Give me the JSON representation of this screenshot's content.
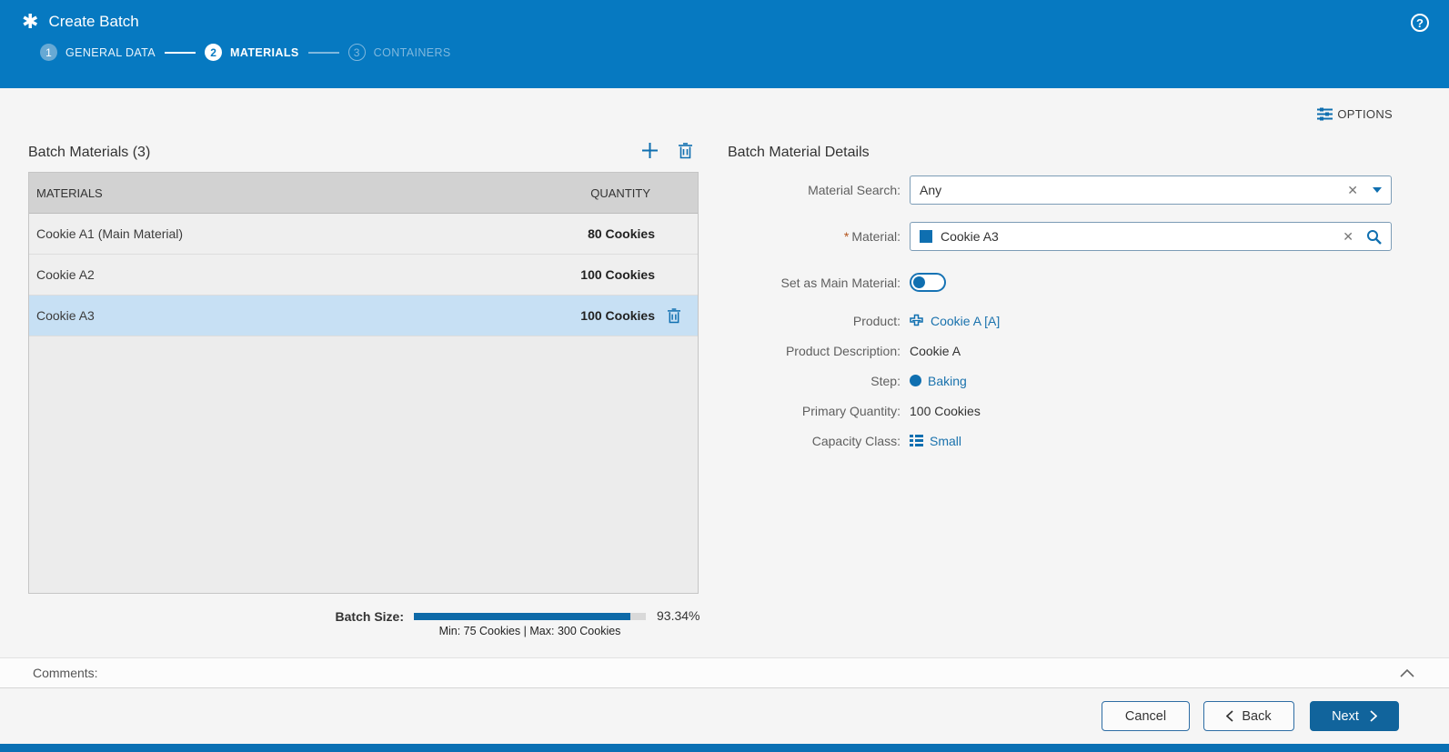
{
  "header": {
    "title": "Create Batch",
    "help_label": "?",
    "steps": [
      {
        "number": "1",
        "label": "GENERAL DATA",
        "state": "completed"
      },
      {
        "number": "2",
        "label": "MATERIALS",
        "state": "active"
      },
      {
        "number": "3",
        "label": "CONTAINERS",
        "state": "future"
      }
    ]
  },
  "toolbar": {
    "options_label": "OPTIONS"
  },
  "materials_panel": {
    "title": "Batch Materials (3)",
    "table": {
      "columns": [
        "MATERIALS",
        "QUANTITY"
      ],
      "rows": [
        {
          "material": "Cookie A1 (Main Material)",
          "quantity": "80 Cookies",
          "selected": false
        },
        {
          "material": "Cookie A2",
          "quantity": "100 Cookies",
          "selected": false
        },
        {
          "material": "Cookie A3",
          "quantity": "100 Cookies",
          "selected": true
        }
      ]
    },
    "batch_size": {
      "label": "Batch Size:",
      "percent_text": "93.34%",
      "percent_value": 93.34,
      "range_text": "Min: 75 Cookies | Max: 300 Cookies"
    }
  },
  "details_panel": {
    "title": "Batch Material Details",
    "material_search": {
      "label": "Material Search:",
      "value": "Any"
    },
    "material": {
      "label": "Material:",
      "required_mark": "*",
      "value": "Cookie A3"
    },
    "set_main_material": {
      "label": "Set as Main Material:",
      "state": "off"
    },
    "product": {
      "label": "Product:",
      "value": "Cookie A [A]"
    },
    "product_description": {
      "label": "Product Description:",
      "value": "Cookie A"
    },
    "step": {
      "label": "Step:",
      "value": "Baking"
    },
    "primary_quantity": {
      "label": "Primary Quantity:",
      "value": "100 Cookies"
    },
    "capacity_class": {
      "label": "Capacity Class:",
      "value": "Small"
    }
  },
  "comments": {
    "label": "Comments:"
  },
  "footer": {
    "cancel_label": "Cancel",
    "back_label": "Back",
    "next_label": "Next"
  },
  "colors": {
    "header_blue": "#0679c1",
    "accent_blue": "#0f6fb0",
    "link_blue": "#1a72ad",
    "next_button_blue": "#11649c",
    "selected_row_blue": "#c7e0f4",
    "progress_fill": "#0e6aa8"
  }
}
